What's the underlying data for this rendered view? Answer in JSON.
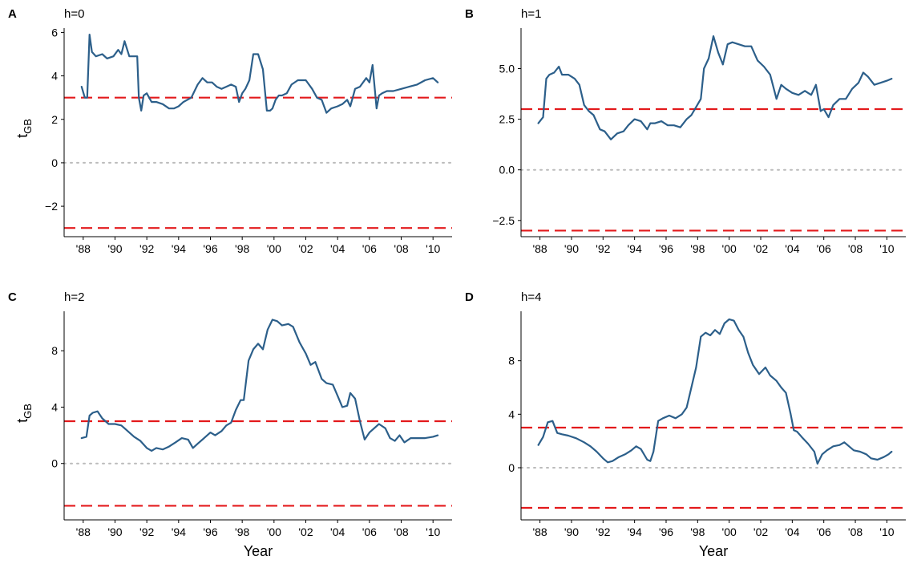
{
  "figure": {
    "ylabel_main": "t",
    "ylabel_sub": "GB",
    "xlabel": "Year"
  },
  "chart_data": [
    {
      "type": "line",
      "panel": "A",
      "title": "h=0",
      "xlim": [
        1986.8,
        2011.2
      ],
      "ylim": [
        -3.4,
        6.2
      ],
      "xticks": [
        1988,
        1990,
        1992,
        1994,
        1996,
        1998,
        2000,
        2002,
        2004,
        2006,
        2008,
        2010
      ],
      "xtick_labels": [
        "'88",
        "'90",
        "'92",
        "'94",
        "'96",
        "'98",
        "'00",
        "'02",
        "'04",
        "'06",
        "'08",
        "'10"
      ],
      "yticks": [
        -2,
        0,
        2,
        4,
        6
      ],
      "ytick_labels": [
        "−2",
        "0",
        "2",
        "4",
        "6"
      ],
      "reference_lines": [
        3,
        -3
      ],
      "zero_line": 0,
      "series_color": "#2c5f8a",
      "threshold_color": "#e31a1c",
      "zero_color": "#bbbbbb",
      "x": [
        1987.9,
        1988.1,
        1988.25,
        1988.4,
        1988.55,
        1988.8,
        1989.2,
        1989.5,
        1989.9,
        1990.2,
        1990.4,
        1990.6,
        1990.9,
        1991.2,
        1991.4,
        1991.5,
        1991.65,
        1991.8,
        1992.0,
        1992.3,
        1992.6,
        1993.0,
        1993.4,
        1993.7,
        1994.0,
        1994.3,
        1994.8,
        1995.2,
        1995.5,
        1995.8,
        1996.1,
        1996.4,
        1996.7,
        1997.0,
        1997.3,
        1997.6,
        1997.8,
        1998.0,
        1998.2,
        1998.45,
        1998.7,
        1999.0,
        1999.3,
        1999.55,
        1999.75,
        1999.9,
        2000.1,
        2000.3,
        2000.5,
        2000.8,
        2001.1,
        2001.5,
        2002.0,
        2002.4,
        2002.7,
        2003.0,
        2003.3,
        2003.6,
        2004.0,
        2004.3,
        2004.6,
        2004.8,
        2005.1,
        2005.4,
        2005.8,
        2006.0,
        2006.2,
        2006.45,
        2006.6,
        2006.8,
        2007.1,
        2007.5,
        2008.0,
        2008.5,
        2009.0,
        2009.5,
        2010.0,
        2010.3
      ],
      "y": [
        3.5,
        3.0,
        3.0,
        5.9,
        5.1,
        4.9,
        5.0,
        4.8,
        4.9,
        5.2,
        5.0,
        5.6,
        4.9,
        4.9,
        4.9,
        3.0,
        2.4,
        3.1,
        3.2,
        2.8,
        2.8,
        2.7,
        2.5,
        2.5,
        2.6,
        2.8,
        3.0,
        3.6,
        3.9,
        3.7,
        3.7,
        3.5,
        3.4,
        3.5,
        3.6,
        3.5,
        2.8,
        3.2,
        3.4,
        3.8,
        5.0,
        5.0,
        4.3,
        2.4,
        2.4,
        2.5,
        2.9,
        3.1,
        3.1,
        3.2,
        3.6,
        3.8,
        3.8,
        3.4,
        3.0,
        2.9,
        2.3,
        2.5,
        2.6,
        2.7,
        2.9,
        2.6,
        3.4,
        3.5,
        3.9,
        3.7,
        4.5,
        2.5,
        3.1,
        3.2,
        3.3,
        3.3,
        3.4,
        3.5,
        3.6,
        3.8,
        3.9,
        3.7
      ]
    },
    {
      "type": "line",
      "panel": "B",
      "title": "h=1",
      "xlim": [
        1986.8,
        2011.2
      ],
      "ylim": [
        -3.3,
        7.0
      ],
      "xticks": [
        1988,
        1990,
        1992,
        1994,
        1996,
        1998,
        2000,
        2002,
        2004,
        2006,
        2008,
        2010
      ],
      "xtick_labels": [
        "'88",
        "'90",
        "'92",
        "'94",
        "'96",
        "'98",
        "'00",
        "'02",
        "'04",
        "'06",
        "'08",
        "'10"
      ],
      "yticks": [
        -2.5,
        0,
        2.5,
        5
      ],
      "ytick_labels": [
        "−2.5",
        "0.0",
        "2.5",
        "5.0"
      ],
      "reference_lines": [
        3,
        -3
      ],
      "zero_line": 0,
      "series_color": "#2c5f8a",
      "threshold_color": "#e31a1c",
      "zero_color": "#bbbbbb",
      "x": [
        1987.9,
        1988.2,
        1988.4,
        1988.6,
        1988.9,
        1989.2,
        1989.4,
        1989.8,
        1990.2,
        1990.5,
        1990.8,
        1991.1,
        1991.4,
        1991.8,
        1992.1,
        1992.5,
        1992.9,
        1993.3,
        1993.6,
        1994.0,
        1994.4,
        1994.8,
        1995.0,
        1995.3,
        1995.7,
        1996.1,
        1996.5,
        1996.9,
        1997.3,
        1997.6,
        1997.9,
        1998.2,
        1998.4,
        1998.7,
        1999.0,
        1999.3,
        1999.6,
        1999.9,
        2000.2,
        2000.6,
        2001.0,
        2001.4,
        2001.8,
        2002.2,
        2002.6,
        2003.0,
        2003.3,
        2003.6,
        2004.0,
        2004.4,
        2004.8,
        2005.2,
        2005.5,
        2005.8,
        2006.0,
        2006.3,
        2006.6,
        2007.0,
        2007.4,
        2007.8,
        2008.2,
        2008.5,
        2008.8,
        2009.2,
        2009.6,
        2010.0,
        2010.3
      ],
      "y": [
        2.3,
        2.6,
        4.5,
        4.7,
        4.8,
        5.1,
        4.7,
        4.7,
        4.5,
        4.2,
        3.2,
        2.9,
        2.7,
        2.0,
        1.9,
        1.5,
        1.8,
        1.9,
        2.2,
        2.5,
        2.4,
        2.0,
        2.3,
        2.3,
        2.4,
        2.2,
        2.2,
        2.1,
        2.5,
        2.7,
        3.1,
        3.5,
        5.0,
        5.5,
        6.6,
        5.8,
        5.2,
        6.2,
        6.3,
        6.2,
        6.1,
        6.1,
        5.4,
        5.1,
        4.7,
        3.5,
        4.2,
        4.0,
        3.8,
        3.7,
        3.9,
        3.7,
        4.2,
        2.9,
        3.0,
        2.6,
        3.2,
        3.5,
        3.5,
        4.0,
        4.3,
        4.8,
        4.6,
        4.2,
        4.3,
        4.4,
        4.5
      ]
    },
    {
      "type": "line",
      "panel": "C",
      "title": "h=2",
      "xlim": [
        1986.8,
        2011.2
      ],
      "ylim": [
        -4.0,
        10.8
      ],
      "xticks": [
        1988,
        1990,
        1992,
        1994,
        1996,
        1998,
        2000,
        2002,
        2004,
        2006,
        2008,
        2010
      ],
      "xtick_labels": [
        "'88",
        "'90",
        "'92",
        "'94",
        "'96",
        "'98",
        "'00",
        "'02",
        "'04",
        "'06",
        "'08",
        "'10"
      ],
      "yticks": [
        0,
        4,
        8
      ],
      "ytick_labels": [
        "0",
        "4",
        "8"
      ],
      "reference_lines": [
        3,
        -3
      ],
      "zero_line": 0,
      "series_color": "#2c5f8a",
      "threshold_color": "#e31a1c",
      "zero_color": "#bbbbbb",
      "x": [
        1987.9,
        1988.2,
        1988.4,
        1988.6,
        1988.9,
        1989.2,
        1989.6,
        1990.0,
        1990.4,
        1990.8,
        1991.2,
        1991.6,
        1992.0,
        1992.3,
        1992.6,
        1993.0,
        1993.4,
        1993.8,
        1994.2,
        1994.6,
        1994.9,
        1995.2,
        1995.6,
        1996.0,
        1996.3,
        1996.7,
        1997.0,
        1997.3,
        1997.6,
        1997.9,
        1998.1,
        1998.4,
        1998.7,
        1999.0,
        1999.3,
        1999.6,
        1999.9,
        2000.2,
        2000.5,
        2000.9,
        2001.2,
        2001.6,
        2002.0,
        2002.3,
        2002.6,
        2003.0,
        2003.3,
        2003.7,
        2004.0,
        2004.3,
        2004.6,
        2004.8,
        2005.1,
        2005.4,
        2005.7,
        2006.0,
        2006.3,
        2006.6,
        2007.0,
        2007.3,
        2007.6,
        2007.9,
        2008.2,
        2008.6,
        2009.0,
        2009.5,
        2010.0,
        2010.3
      ],
      "y": [
        1.8,
        1.9,
        3.4,
        3.6,
        3.7,
        3.2,
        2.8,
        2.8,
        2.7,
        2.3,
        1.9,
        1.6,
        1.1,
        0.9,
        1.1,
        1.0,
        1.2,
        1.5,
        1.8,
        1.7,
        1.1,
        1.4,
        1.8,
        2.2,
        2.0,
        2.3,
        2.7,
        2.9,
        3.8,
        4.5,
        4.5,
        7.3,
        8.1,
        8.5,
        8.1,
        9.5,
        10.2,
        10.1,
        9.8,
        9.9,
        9.7,
        8.6,
        7.8,
        7.0,
        7.2,
        6.0,
        5.7,
        5.6,
        4.8,
        4.0,
        4.1,
        5.0,
        4.6,
        3.0,
        1.7,
        2.2,
        2.5,
        2.8,
        2.5,
        1.8,
        1.6,
        2.0,
        1.5,
        1.8,
        1.8,
        1.8,
        1.9,
        2.0
      ]
    },
    {
      "type": "line",
      "panel": "D",
      "title": "h=4",
      "xlim": [
        1986.8,
        2011.2
      ],
      "ylim": [
        -3.9,
        11.7
      ],
      "xticks": [
        1988,
        1990,
        1992,
        1994,
        1996,
        1998,
        2000,
        2002,
        2004,
        2006,
        2008,
        2010
      ],
      "xtick_labels": [
        "'88",
        "'90",
        "'92",
        "'94",
        "'96",
        "'98",
        "'00",
        "'02",
        "'04",
        "'06",
        "'08",
        "'10"
      ],
      "yticks": [
        0,
        4,
        8
      ],
      "ytick_labels": [
        "0",
        "4",
        "8"
      ],
      "reference_lines": [
        3,
        -3
      ],
      "zero_line": 0,
      "series_color": "#2c5f8a",
      "threshold_color": "#e31a1c",
      "zero_color": "#bbbbbb",
      "x": [
        1987.9,
        1988.2,
        1988.5,
        1988.8,
        1989.1,
        1989.4,
        1989.8,
        1990.3,
        1990.8,
        1991.2,
        1991.6,
        1992.0,
        1992.3,
        1992.6,
        1993.0,
        1993.4,
        1993.8,
        1994.1,
        1994.4,
        1994.8,
        1995.0,
        1995.2,
        1995.5,
        1995.8,
        1996.2,
        1996.6,
        1997.0,
        1997.3,
        1997.6,
        1997.9,
        1998.2,
        1998.5,
        1998.8,
        1999.1,
        1999.4,
        1999.7,
        2000.0,
        2000.3,
        2000.6,
        2000.9,
        2001.2,
        2001.5,
        2001.9,
        2002.3,
        2002.6,
        2003.0,
        2003.3,
        2003.6,
        2003.9,
        2004.1,
        2004.3,
        2004.6,
        2005.0,
        2005.4,
        2005.6,
        2005.9,
        2006.2,
        2006.6,
        2007.0,
        2007.3,
        2007.6,
        2007.9,
        2008.3,
        2008.7,
        2009.0,
        2009.4,
        2009.8,
        2010.1,
        2010.3
      ],
      "y": [
        1.7,
        2.3,
        3.4,
        3.5,
        2.6,
        2.5,
        2.4,
        2.2,
        1.9,
        1.6,
        1.2,
        0.7,
        0.4,
        0.5,
        0.8,
        1.0,
        1.3,
        1.6,
        1.4,
        0.6,
        0.5,
        1.2,
        3.5,
        3.7,
        3.9,
        3.7,
        4.0,
        4.5,
        6.0,
        7.5,
        9.8,
        10.1,
        9.9,
        10.3,
        10.0,
        10.8,
        11.1,
        11.0,
        10.3,
        9.8,
        8.6,
        7.7,
        7.0,
        7.5,
        6.9,
        6.5,
        6.0,
        5.6,
        4.0,
        2.8,
        2.7,
        2.3,
        1.8,
        1.2,
        0.3,
        1.0,
        1.3,
        1.6,
        1.7,
        1.9,
        1.6,
        1.3,
        1.2,
        1.0,
        0.7,
        0.6,
        0.8,
        1.0,
        1.2
      ]
    }
  ]
}
